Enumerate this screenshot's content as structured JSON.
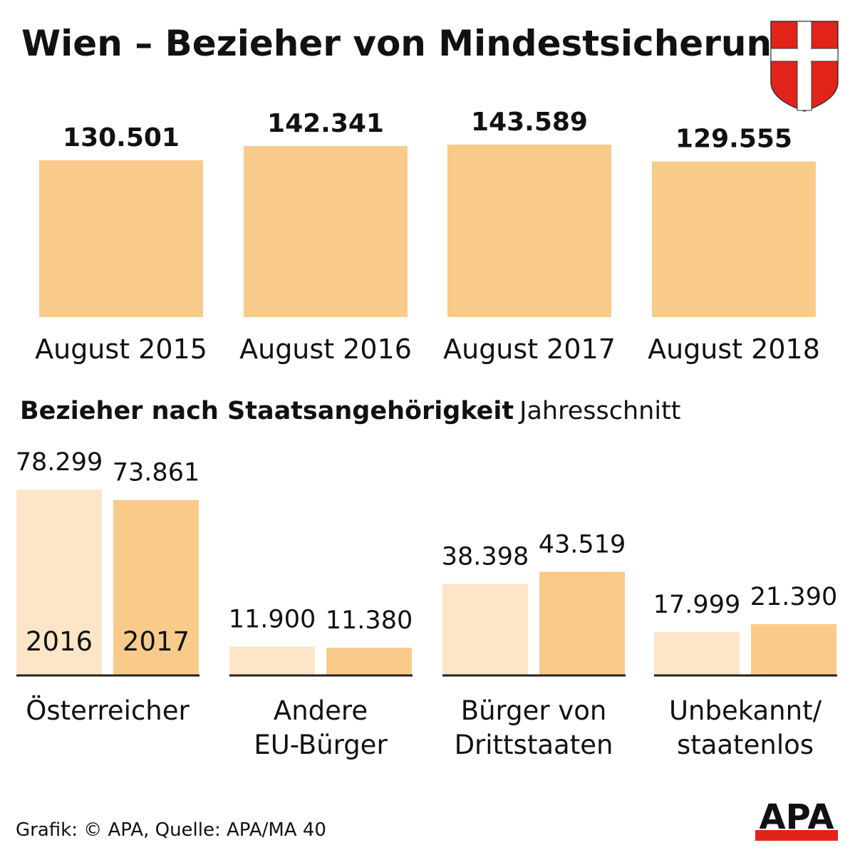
{
  "chart_data": [
    {
      "type": "bar",
      "title": "Wien – Bezieher von Mindestsicherung",
      "categories": [
        "August 2015",
        "August 2016",
        "August 2017",
        "August 2018"
      ],
      "values": [
        130501,
        142341,
        143589,
        129555
      ],
      "value_labels": [
        "130.501",
        "142.341",
        "143.589",
        "129.555"
      ],
      "ylim": [
        0,
        150000
      ],
      "grid": false,
      "color": "#f9cb8b"
    },
    {
      "type": "bar",
      "title": "Bezieher nach Staatsangehörigkeit",
      "subtitle": "Jahresschnitt",
      "categories": [
        "Österreicher",
        "Andere EU-Bürger",
        "Bürger von Drittstaaten",
        "Unbekannt/ staatenlos"
      ],
      "category_lines": [
        [
          "Österreicher"
        ],
        [
          "Andere",
          "EU-Bürger"
        ],
        [
          "Bürger von",
          "Drittstaaten"
        ],
        [
          "Unbekannt/",
          "staatenlos"
        ]
      ],
      "series": [
        {
          "name": "2016",
          "values": [
            78299,
            11900,
            38398,
            17999
          ],
          "value_labels": [
            "78.299",
            "11.900",
            "38.398",
            "17.999"
          ],
          "color": "#fde6c8"
        },
        {
          "name": "2017",
          "values": [
            73861,
            11380,
            43519,
            21390
          ],
          "value_labels": [
            "73.861",
            "11.380",
            "43.519",
            "21.390"
          ],
          "color": "#f9cb8b"
        }
      ],
      "legend": "inside-first-group",
      "grid": false
    }
  ],
  "footer": {
    "source": "Grafik: © APA, Quelle: APA/MA 40",
    "logo": "APA"
  },
  "emblem": "vienna-coat-of-arms",
  "colors": {
    "red": "#e2231a",
    "axis": "#222222"
  }
}
